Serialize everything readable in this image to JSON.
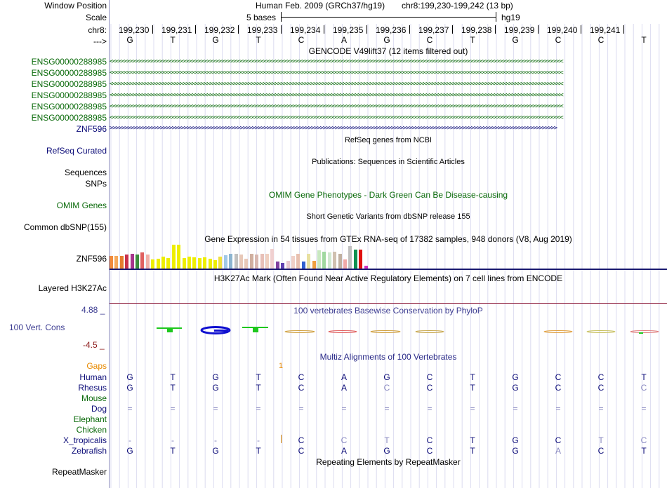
{
  "header": {
    "window_position_label": "Window Position",
    "scale_label": "Scale",
    "chrom_label": "chr8:",
    "strand_label": "--->",
    "assembly_text": "Human Feb. 2009 (GRCh37/hg19)",
    "region_text": "chr8:199,230-199,242 (13 bp)",
    "scale_text": "5 bases",
    "db_text": "hg19",
    "positions": [
      "199,230",
      "199,231",
      "199,232",
      "199,233",
      "199,234",
      "199,235",
      "199,236",
      "199,237",
      "199,238",
      "199,239",
      "199,240",
      "199,241"
    ],
    "bases": [
      "G",
      "T",
      "G",
      "T",
      "C",
      "A",
      "G",
      "C",
      "T",
      "G",
      "C",
      "C",
      "T"
    ]
  },
  "tracks": {
    "gencode_title": "GENCODE V49lift37 (12 items filtered out)",
    "gencode_items": [
      "ENSG00000288985",
      "ENSG00000288985",
      "ENSG00000288985",
      "ENSG00000288985",
      "ENSG00000288985",
      "ENSG00000288985"
    ],
    "gencode_arrow_left": "<<<<<<<<<<<<<<<<<<<<<<<<<<<<<<<<<<<<<<<<<<<<<<<<<<<<<<<<<<<<<<<<<<<<<<<<<<<<<<<<<<<<<<<<<<<<<<<<<<<<<<<<<<<<<<<<<<<<<<<<<<<<<<<<<<<<<<<<<<<<<<<<<<<<<<<<<",
    "znf596_label": "ZNF596",
    "gencode_arrow_right": ">>>>>>>>>>>>>>>>>>>>>>>>>>>>>>>>>>>>>>>>>>>>>>>>>>>>>>>>>>>>>>>>>>>>>>>>>>>>>>>>>>>>>>>>>>>>>>>>>>>>>>>>>>>>>>>>>>>>>>>>>>>>>>>>>>>>>>>>>>>>>>>>>>>>>>>",
    "refseq_title": "RefSeq genes from NCBI",
    "refseq_label": "RefSeq Curated",
    "pubs_title": "Publications: Sequences in Scientific Articles",
    "sequences_label": "Sequences",
    "snps_label": "SNPs",
    "omim_title": "OMIM Gene Phenotypes - Dark Green Can Be Disease-causing",
    "omim_label": "OMIM Genes",
    "dbsnp_title": "Short Genetic Variants from dbSNP release 155",
    "dbsnp_label": "Common dbSNP(155)",
    "gtex_title": "Gene Expression in 54 tissues from GTEx RNA-seq of 17382 samples, 948 donors (V8, Aug 2019)",
    "gtex_label": "ZNF596",
    "h3k27ac_title": "H3K27Ac Mark (Often Found Near Active Regulatory Elements) on 7 cell lines from ENCODE",
    "h3k27ac_label": "Layered H3K27Ac",
    "phylop_title": "100 vertebrates Basewise Conservation by PhyloP",
    "phylop_label": "100 Vert. Cons",
    "phylop_max": "4.88 _",
    "phylop_min": "-4.5 _",
    "multiz_title": "Multiz Alignments of 100 Vertebrates",
    "gaps_label": "Gaps",
    "gaps_value": "1",
    "repeat_title": "Repeating Elements by RepeatMasker",
    "repeat_label": "RepeatMasker"
  },
  "gtex_bars": [
    {
      "v": 0.55,
      "c": "#f08a3c"
    },
    {
      "v": 0.55,
      "c": "#f5a85a"
    },
    {
      "v": 0.55,
      "c": "#e57c2e"
    },
    {
      "v": 0.6,
      "c": "#c8304b"
    },
    {
      "v": 0.62,
      "c": "#a6358c"
    },
    {
      "v": 0.6,
      "c": "#3c8c3c"
    },
    {
      "v": 0.68,
      "c": "#e06060"
    },
    {
      "v": 0.6,
      "c": "#f0b0a8"
    },
    {
      "v": 0.4,
      "c": "#eeee00"
    },
    {
      "v": 0.42,
      "c": "#eeee00"
    },
    {
      "v": 0.5,
      "c": "#eeee00"
    },
    {
      "v": 0.45,
      "c": "#eeee00"
    },
    {
      "v": 1.0,
      "c": "#eeee00"
    },
    {
      "v": 1.0,
      "c": "#eeee00"
    },
    {
      "v": 0.45,
      "c": "#eeee00"
    },
    {
      "v": 0.5,
      "c": "#eeee00"
    },
    {
      "v": 0.48,
      "c": "#eeee00"
    },
    {
      "v": 0.45,
      "c": "#eeee00"
    },
    {
      "v": 0.48,
      "c": "#eeee00"
    },
    {
      "v": 0.42,
      "c": "#eeee00"
    },
    {
      "v": 0.38,
      "c": "#eeee00"
    },
    {
      "v": 0.5,
      "c": "#f0e040"
    },
    {
      "v": 0.58,
      "c": "#a0c8e8"
    },
    {
      "v": 0.62,
      "c": "#8cb4d0"
    },
    {
      "v": 0.62,
      "c": "#c0c0c0"
    },
    {
      "v": 0.6,
      "c": "#e8c8b8"
    },
    {
      "v": 0.42,
      "c": "#e8c8b8"
    },
    {
      "v": 0.62,
      "c": "#d0b0a0"
    },
    {
      "v": 0.6,
      "c": "#d8b8b0"
    },
    {
      "v": 0.62,
      "c": "#e8c0b8"
    },
    {
      "v": 0.62,
      "c": "#f0d0c0"
    },
    {
      "v": 0.82,
      "c": "#f0d0d0"
    },
    {
      "v": 0.32,
      "c": "#8040a0"
    },
    {
      "v": 0.25,
      "c": "#6040b0"
    },
    {
      "v": 0.35,
      "c": "#e8c8d0"
    },
    {
      "v": 0.55,
      "c": "#f0d0c8"
    },
    {
      "v": 0.62,
      "c": "#e8c0b0"
    },
    {
      "v": 0.3,
      "c": "#3060d0"
    },
    {
      "v": 0.62,
      "c": "#e8e0a0"
    },
    {
      "v": 0.35,
      "c": "#f0a040"
    },
    {
      "v": 0.78,
      "c": "#c8e8c0"
    },
    {
      "v": 0.7,
      "c": "#a0d8a0"
    },
    {
      "v": 0.68,
      "c": "#d0e8d0"
    },
    {
      "v": 0.72,
      "c": "#d0c0b0"
    },
    {
      "v": 0.62,
      "c": "#c0b0a0"
    },
    {
      "v": 0.4,
      "c": "#f0a8a8"
    },
    {
      "v": 0.95,
      "c": "#c0c0c0"
    },
    {
      "v": 0.8,
      "c": "#109050"
    },
    {
      "v": 0.8,
      "c": "#e01010"
    },
    {
      "v": 0.15,
      "c": "#d030c0"
    }
  ],
  "multiz": {
    "species": [
      {
        "name": "Human",
        "color": "#0c0c78",
        "bases": [
          "G",
          "T",
          "G",
          "T",
          "C",
          "A",
          "G",
          "C",
          "T",
          "G",
          "C",
          "C",
          "T"
        ],
        "faint": [
          false,
          false,
          false,
          false,
          false,
          false,
          false,
          false,
          false,
          false,
          false,
          false,
          false
        ]
      },
      {
        "name": "Rhesus",
        "color": "#0c0c78",
        "bases": [
          "G",
          "T",
          "G",
          "T",
          "C",
          "A",
          "C",
          "C",
          "T",
          "G",
          "C",
          "C",
          "C"
        ],
        "faint": [
          false,
          false,
          false,
          false,
          false,
          false,
          true,
          false,
          false,
          false,
          false,
          false,
          true
        ]
      },
      {
        "name": "Mouse",
        "color": "#0a6a0a",
        "bases": [
          "",
          "",
          "",
          "",
          "",
          "",
          "",
          "",
          "",
          "",
          "",
          "",
          ""
        ],
        "faint": []
      },
      {
        "name": "Dog",
        "color": "#0c0c78",
        "bases": [
          "=",
          "=",
          "=",
          "=",
          "=",
          "=",
          "=",
          "=",
          "=",
          "=",
          "=",
          "=",
          "="
        ],
        "faint": [
          true,
          true,
          true,
          true,
          true,
          true,
          true,
          true,
          true,
          true,
          true,
          true,
          true
        ]
      },
      {
        "name": "Elephant",
        "color": "#0a6a0a",
        "bases": [
          "",
          "",
          "",
          "",
          "",
          "",
          "",
          "",
          "",
          "",
          "",
          "",
          ""
        ],
        "faint": []
      },
      {
        "name": "Chicken",
        "color": "#0a6a0a",
        "bases": [
          "",
          "",
          "",
          "",
          "",
          "",
          "",
          "",
          "",
          "",
          "",
          "",
          ""
        ],
        "faint": []
      },
      {
        "name": "X_tropicalis",
        "color": "#0c0c78",
        "bases": [
          "-",
          "-",
          "-",
          "-",
          "C",
          "C",
          "T",
          "C",
          "T",
          "G",
          "C",
          "T",
          "C"
        ],
        "faint": [
          true,
          true,
          true,
          true,
          false,
          true,
          true,
          false,
          false,
          false,
          false,
          true,
          true
        ]
      },
      {
        "name": "Zebrafish",
        "color": "#0c0c78",
        "bases": [
          "G",
          "T",
          "G",
          "T",
          "C",
          "A",
          "G",
          "C",
          "T",
          "G",
          "A",
          "C",
          "T"
        ],
        "faint": [
          false,
          false,
          false,
          false,
          false,
          false,
          false,
          false,
          false,
          false,
          true,
          false,
          false
        ]
      }
    ]
  }
}
